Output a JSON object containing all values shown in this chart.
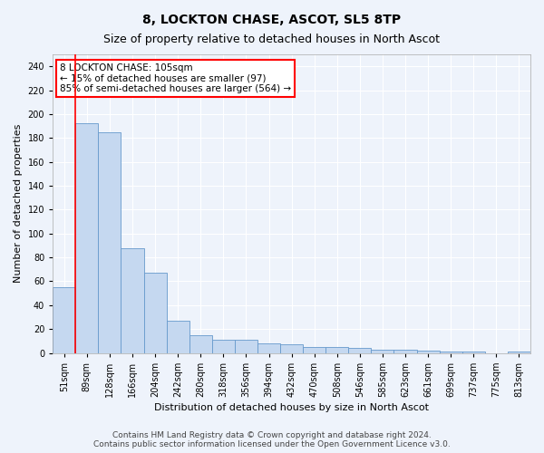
{
  "title": "8, LOCKTON CHASE, ASCOT, SL5 8TP",
  "subtitle": "Size of property relative to detached houses in North Ascot",
  "xlabel": "Distribution of detached houses by size in North Ascot",
  "ylabel": "Number of detached properties",
  "categories": [
    "51sqm",
    "89sqm",
    "128sqm",
    "166sqm",
    "204sqm",
    "242sqm",
    "280sqm",
    "318sqm",
    "356sqm",
    "394sqm",
    "432sqm",
    "470sqm",
    "508sqm",
    "546sqm",
    "585sqm",
    "623sqm",
    "661sqm",
    "699sqm",
    "737sqm",
    "775sqm",
    "813sqm"
  ],
  "values": [
    55,
    192,
    185,
    88,
    67,
    27,
    15,
    11,
    11,
    8,
    7,
    5,
    5,
    4,
    3,
    3,
    2,
    1,
    1,
    0,
    1
  ],
  "bar_color": "#c5d8f0",
  "bar_edge_color": "#6699cc",
  "background_color": "#eef3fb",
  "grid_color": "#ffffff",
  "annotation_box_text": "8 LOCKTON CHASE: 105sqm\n← 15% of detached houses are smaller (97)\n85% of semi-detached houses are larger (564) →",
  "annotation_box_color": "white",
  "annotation_box_edge_color": "red",
  "red_line_x": 0.5,
  "ylim": [
    0,
    250
  ],
  "yticks": [
    0,
    20,
    40,
    60,
    80,
    100,
    120,
    140,
    160,
    180,
    200,
    220,
    240
  ],
  "footer_line1": "Contains HM Land Registry data © Crown copyright and database right 2024.",
  "footer_line2": "Contains public sector information licensed under the Open Government Licence v3.0.",
  "title_fontsize": 10,
  "subtitle_fontsize": 9,
  "xlabel_fontsize": 8,
  "ylabel_fontsize": 8,
  "tick_fontsize": 7,
  "annotation_fontsize": 7.5,
  "footer_fontsize": 6.5
}
